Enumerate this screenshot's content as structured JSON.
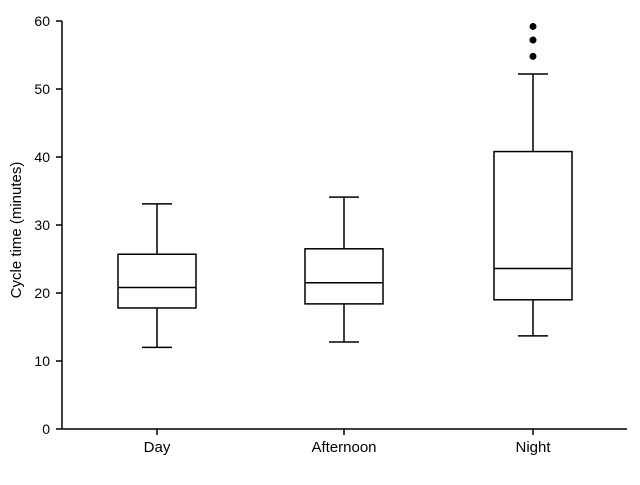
{
  "chart_data": {
    "type": "boxplot",
    "title": "",
    "xlabel": "",
    "ylabel": "Cycle time (minutes)",
    "ylim": [
      0,
      60
    ],
    "yticks": [
      0,
      10,
      20,
      30,
      40,
      50,
      60
    ],
    "grid": false,
    "legend": "none",
    "categories": [
      "Day",
      "Afternoon",
      "Night"
    ],
    "boxes": [
      {
        "category": "Day",
        "whisker_low": 12,
        "q1": 17.8,
        "median": 20.8,
        "q3": 25.7,
        "whisker_high": 33.1,
        "outliers": []
      },
      {
        "category": "Afternoon",
        "whisker_low": 12.8,
        "q1": 18.4,
        "median": 21.5,
        "q3": 26.5,
        "whisker_high": 34.1,
        "outliers": []
      },
      {
        "category": "Night",
        "whisker_low": 13.7,
        "q1": 19,
        "median": 23.6,
        "q3": 40.8,
        "whisker_high": 52.2,
        "outliers": [
          54.8,
          57.2,
          59.2
        ]
      }
    ],
    "colors": {
      "line": "#000000",
      "box_fill": "#ffffff",
      "outlier": "#000000"
    }
  }
}
